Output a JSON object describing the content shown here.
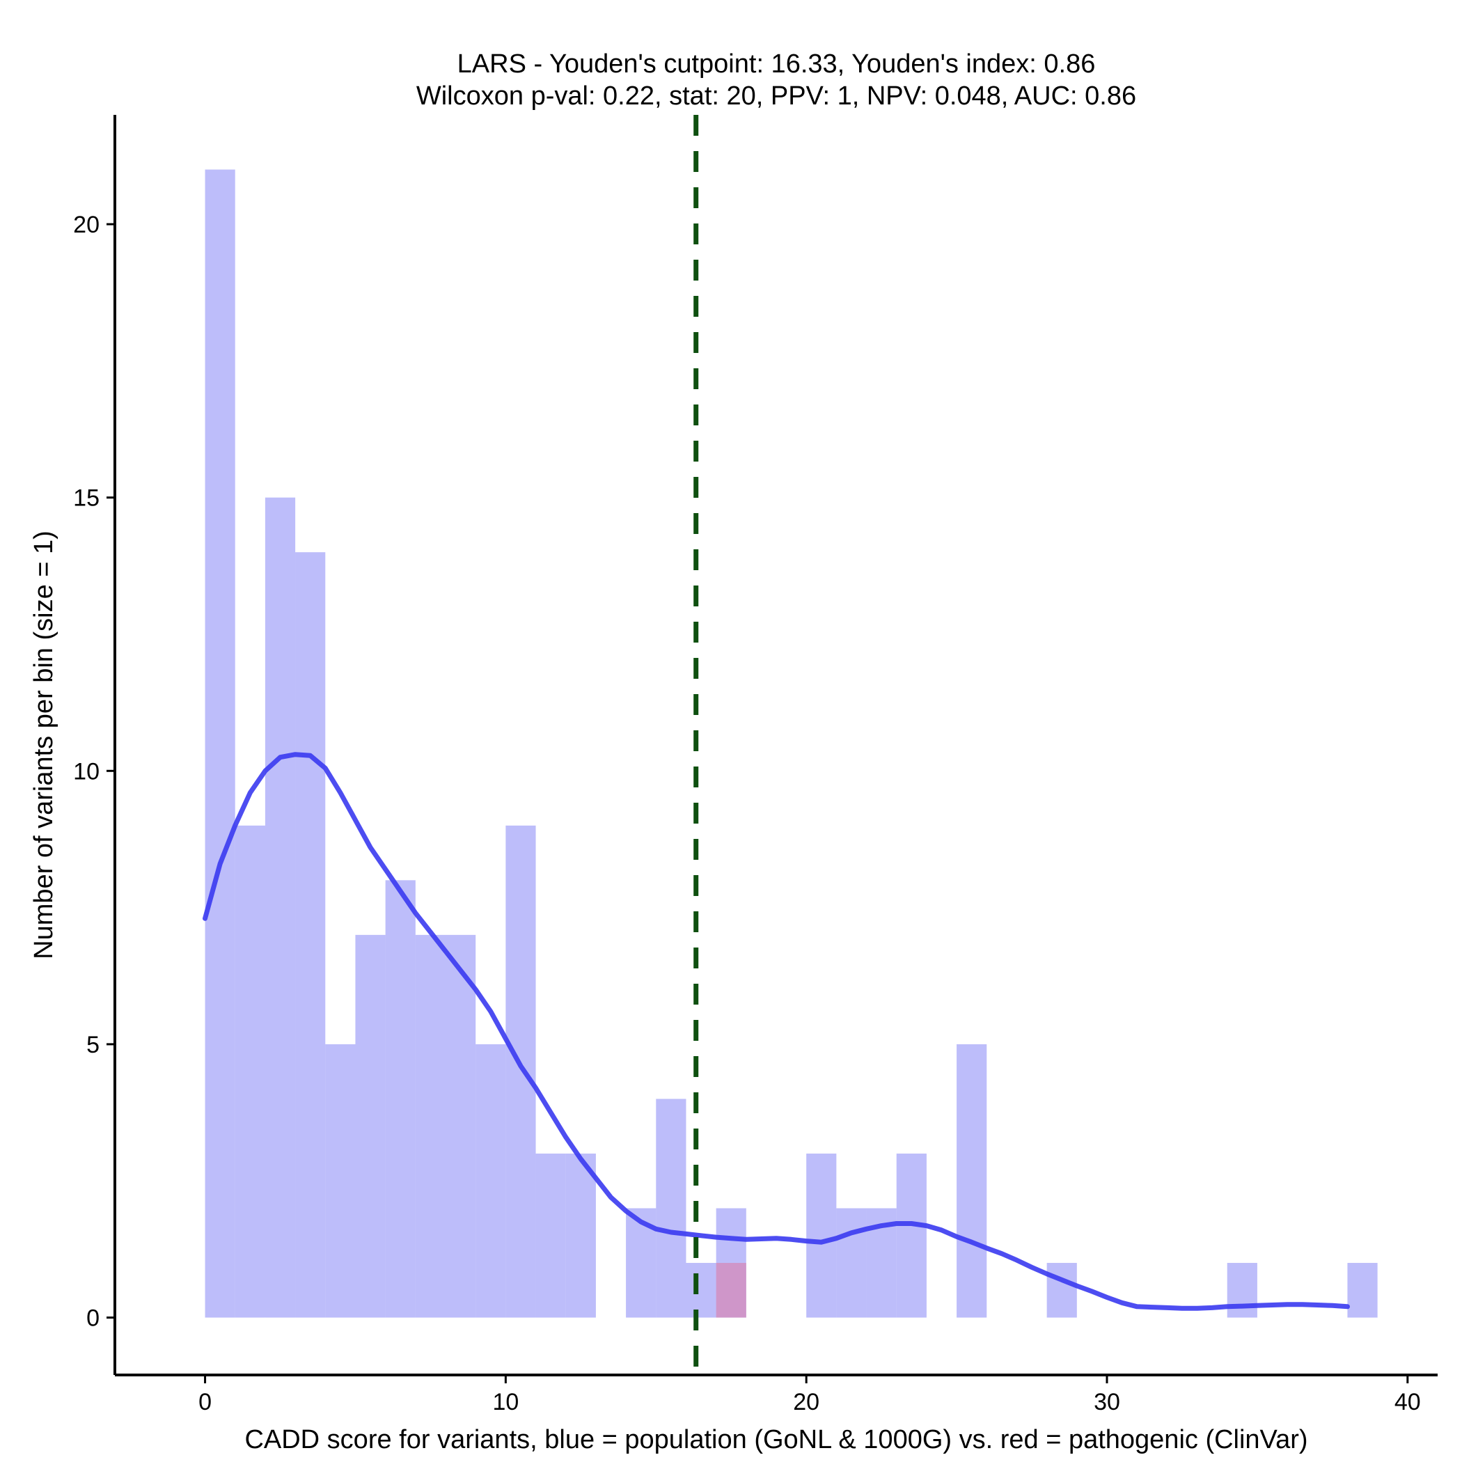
{
  "chart_data": {
    "type": "bar",
    "title_lines": [
      "LARS - Youden's cutpoint: 16.33, Youden's index: 0.86",
      "Wilcoxon p-val: 0.22, stat: 20, PPV: 1, NPV: 0.048, AUC: 0.86"
    ],
    "xlabel": "CADD score for variants, blue = population (GoNL & 1000G) vs. red = pathogenic (ClinVar)",
    "ylabel": "Number of variants per bin (size = 1)",
    "xlim": [
      -3,
      41
    ],
    "ylim": [
      -1.05,
      22
    ],
    "xticks": [
      0,
      10,
      20,
      30,
      40
    ],
    "yticks": [
      0,
      5,
      10,
      15,
      20
    ],
    "bin_size": 1,
    "series": [
      {
        "color": "#7b7bf5",
        "bins": [
          {
            "x0": 0,
            "x1": 1,
            "count": 21
          },
          {
            "x0": 1,
            "x1": 2,
            "count": 9
          },
          {
            "x0": 2,
            "x1": 3,
            "count": 15
          },
          {
            "x0": 3,
            "x1": 4,
            "count": 14
          },
          {
            "x0": 4,
            "x1": 5,
            "count": 5
          },
          {
            "x0": 5,
            "x1": 6,
            "count": 7
          },
          {
            "x0": 6,
            "x1": 7,
            "count": 8
          },
          {
            "x0": 7,
            "x1": 8,
            "count": 7
          },
          {
            "x0": 8,
            "x1": 9,
            "count": 7
          },
          {
            "x0": 9,
            "x1": 10,
            "count": 5
          },
          {
            "x0": 10,
            "x1": 11,
            "count": 9
          },
          {
            "x0": 11,
            "x1": 12,
            "count": 3
          },
          {
            "x0": 12,
            "x1": 13,
            "count": 3
          },
          {
            "x0": 14,
            "x1": 15,
            "count": 2
          },
          {
            "x0": 15,
            "x1": 16,
            "count": 4
          },
          {
            "x0": 16,
            "x1": 17,
            "count": 1
          },
          {
            "x0": 17,
            "x1": 18,
            "count": 2
          },
          {
            "x0": 20,
            "x1": 21,
            "count": 3
          },
          {
            "x0": 21,
            "x1": 22,
            "count": 2
          },
          {
            "x0": 22,
            "x1": 23,
            "count": 2
          },
          {
            "x0": 23,
            "x1": 24,
            "count": 3
          },
          {
            "x0": 25,
            "x1": 26,
            "count": 5
          },
          {
            "x0": 28,
            "x1": 29,
            "count": 1
          },
          {
            "x0": 34,
            "x1": 35,
            "count": 1
          },
          {
            "x0": 38,
            "x1": 39,
            "count": 1
          }
        ]
      },
      {
        "color": "#d68ab8",
        "bins": [
          {
            "x0": 17,
            "x1": 18,
            "count": 1
          }
        ]
      }
    ],
    "density_curve": {
      "color": "#3a3af0",
      "points": [
        [
          0,
          7.3
        ],
        [
          0.5,
          8.3
        ],
        [
          1,
          9.0
        ],
        [
          1.5,
          9.6
        ],
        [
          2,
          10.0
        ],
        [
          2.5,
          10.25
        ],
        [
          3,
          10.3
        ],
        [
          3.5,
          10.28
        ],
        [
          4,
          10.05
        ],
        [
          4.5,
          9.6
        ],
        [
          5,
          9.1
        ],
        [
          5.5,
          8.6
        ],
        [
          6,
          8.2
        ],
        [
          6.5,
          7.8
        ],
        [
          7,
          7.4
        ],
        [
          7.5,
          7.05
        ],
        [
          8,
          6.7
        ],
        [
          8.5,
          6.35
        ],
        [
          9,
          6.0
        ],
        [
          9.5,
          5.6
        ],
        [
          10,
          5.1
        ],
        [
          10.5,
          4.6
        ],
        [
          11,
          4.2
        ],
        [
          11.5,
          3.75
        ],
        [
          12,
          3.3
        ],
        [
          12.5,
          2.9
        ],
        [
          13,
          2.55
        ],
        [
          13.5,
          2.2
        ],
        [
          14,
          1.95
        ],
        [
          14.5,
          1.75
        ],
        [
          15,
          1.62
        ],
        [
          15.5,
          1.56
        ],
        [
          16,
          1.53
        ],
        [
          16.5,
          1.5
        ],
        [
          17,
          1.47
        ],
        [
          17.5,
          1.45
        ],
        [
          18,
          1.43
        ],
        [
          18.5,
          1.44
        ],
        [
          19,
          1.45
        ],
        [
          19.5,
          1.43
        ],
        [
          20,
          1.4
        ],
        [
          20.5,
          1.38
        ],
        [
          21,
          1.45
        ],
        [
          21.5,
          1.55
        ],
        [
          22,
          1.62
        ],
        [
          22.5,
          1.68
        ],
        [
          23,
          1.72
        ],
        [
          23.5,
          1.72
        ],
        [
          24,
          1.68
        ],
        [
          24.5,
          1.6
        ],
        [
          25,
          1.48
        ],
        [
          25.5,
          1.38
        ],
        [
          26,
          1.27
        ],
        [
          26.5,
          1.17
        ],
        [
          27,
          1.05
        ],
        [
          27.5,
          0.92
        ],
        [
          28,
          0.8
        ],
        [
          28.5,
          0.69
        ],
        [
          29,
          0.58
        ],
        [
          29.5,
          0.48
        ],
        [
          30,
          0.37
        ],
        [
          30.5,
          0.27
        ],
        [
          31,
          0.2
        ],
        [
          31.5,
          0.19
        ],
        [
          32,
          0.18
        ],
        [
          32.5,
          0.17
        ],
        [
          33,
          0.17
        ],
        [
          33.5,
          0.18
        ],
        [
          34,
          0.2
        ],
        [
          34.5,
          0.21
        ],
        [
          35,
          0.22
        ],
        [
          35.5,
          0.23
        ],
        [
          36,
          0.24
        ],
        [
          36.5,
          0.24
        ],
        [
          37,
          0.23
        ],
        [
          37.5,
          0.22
        ],
        [
          38,
          0.2
        ]
      ]
    },
    "cutpoint": {
      "x": 16.33,
      "color": "#0f5010"
    }
  }
}
